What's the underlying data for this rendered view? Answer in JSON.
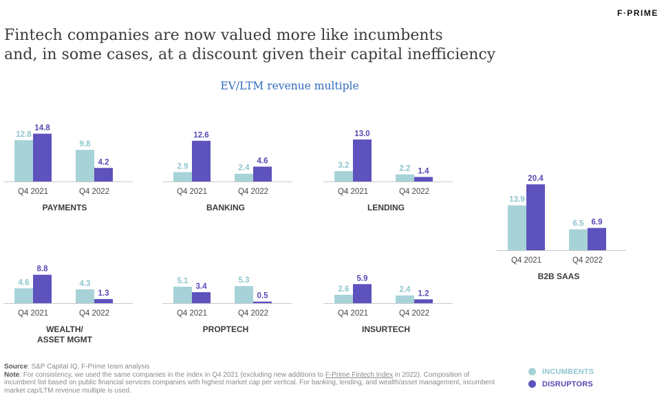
{
  "logo": "F·PRIME",
  "title_line1": "Fintech companies are now valued more like incumbents",
  "title_line2": "and, in some cases, at a discount given their capital inefficiency",
  "subtitle": "EV/LTM revenue multiple",
  "colors": {
    "incumbents": "#a7d3d8",
    "disruptors": "#5e52bd",
    "incumbents_label": "#8fc5cd",
    "disruptors_label": "#5549b3"
  },
  "chart_data": [
    {
      "type": "bar",
      "title": "PAYMENTS",
      "categories": [
        "Q4 2021",
        "Q4 2022"
      ],
      "series": [
        {
          "name": "INCUMBENTS",
          "values": [
            12.8,
            9.8
          ]
        },
        {
          "name": "DISRUPTORS",
          "values": [
            14.8,
            4.2
          ]
        }
      ]
    },
    {
      "type": "bar",
      "title": "BANKING",
      "categories": [
        "Q4 2021",
        "Q4 2022"
      ],
      "series": [
        {
          "name": "INCUMBENTS",
          "values": [
            2.9,
            2.4
          ]
        },
        {
          "name": "DISRUPTORS",
          "values": [
            12.6,
            4.6
          ]
        }
      ]
    },
    {
      "type": "bar",
      "title": "LENDING",
      "categories": [
        "Q4 2021",
        "Q4 2022"
      ],
      "series": [
        {
          "name": "INCUMBENTS",
          "values": [
            3.2,
            2.2
          ]
        },
        {
          "name": "DISRUPTORS",
          "values": [
            13.0,
            1.4
          ]
        }
      ]
    },
    {
      "type": "bar",
      "title": "B2B SAAS",
      "categories": [
        "Q4 2021",
        "Q4 2022"
      ],
      "series": [
        {
          "name": "INCUMBENTS",
          "values": [
            13.9,
            6.5
          ]
        },
        {
          "name": "DISRUPTORS",
          "values": [
            20.4,
            6.9
          ]
        }
      ]
    },
    {
      "type": "bar",
      "title": [
        "WEALTH/",
        "ASSET MGMT"
      ],
      "categories": [
        "Q4 2021",
        "Q4 2022"
      ],
      "series": [
        {
          "name": "INCUMBENTS",
          "values": [
            4.6,
            4.3
          ]
        },
        {
          "name": "DISRUPTORS",
          "values": [
            8.8,
            1.3
          ]
        }
      ]
    },
    {
      "type": "bar",
      "title": "PROPTECH",
      "categories": [
        "Q4 2021",
        "Q4 2022"
      ],
      "series": [
        {
          "name": "INCUMBENTS",
          "values": [
            5.1,
            5.3
          ]
        },
        {
          "name": "DISRUPTORS",
          "values": [
            3.4,
            0.5
          ]
        }
      ]
    },
    {
      "type": "bar",
      "title": "INSURTECH",
      "categories": [
        "Q4 2021",
        "Q4 2022"
      ],
      "series": [
        {
          "name": "INCUMBENTS",
          "values": [
            2.6,
            2.4
          ]
        },
        {
          "name": "DISRUPTORS",
          "values": [
            5.9,
            1.2
          ]
        }
      ]
    }
  ],
  "legend": {
    "incumbents": "INCUMBENTS",
    "disruptors": "DISRUPTORS"
  },
  "footnote": {
    "source_label": "Source",
    "source_text": ": S&P Capital IQ, F-Prime team analysis",
    "note_label": "Note",
    "note_text_a": ": For consistency, we used the same companies in the index in Q4 2021 (excluding new additions to ",
    "note_link": "F-Prime Fintech Index",
    "note_text_b": " in 2022). Composition of incumbent list based on public financial services companies with highest market cap per vertical. For banking, lending, and wealth/asset management, incumbent market cap/LTM revenue multiple is used."
  }
}
